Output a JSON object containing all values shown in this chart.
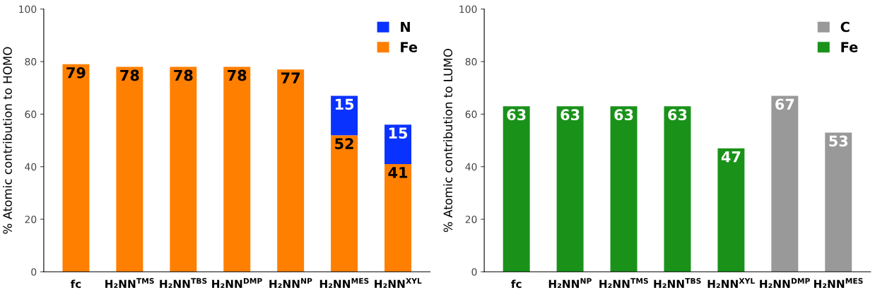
{
  "chart_data": [
    {
      "type": "bar",
      "stacked": true,
      "ylabel": "% Atomic contribution to HOMO",
      "categories": [
        "fc",
        "H₂NN$^{TMS}$",
        "H₂NN$^{TBS}$",
        "H₂NN$^{DMP}$",
        "H₂NN$^{NP}$",
        "H₂NN$^{MES}$",
        "H₂NN$^{XYL}$"
      ],
      "ylim": [
        0,
        100
      ],
      "yticks": [
        0,
        20,
        40,
        60,
        80,
        100
      ],
      "grid": false,
      "legend": "top right",
      "data_labels": true,
      "series": [
        {
          "name": "Fe",
          "color": "#ff7f00",
          "values": [
            79,
            78,
            78,
            78,
            77,
            52,
            41
          ]
        },
        {
          "name": "N",
          "color": "#0a32ff",
          "values": [
            null,
            null,
            null,
            null,
            null,
            15,
            15
          ]
        }
      ]
    },
    {
      "type": "bar",
      "stacked": true,
      "ylabel": "% Atomic contribution to LUMO",
      "categories": [
        "fc",
        "H₂NN$^{NP}$",
        "H₂NN$^{TMS}$",
        "H₂NN$^{TBS}$",
        "H₂NN$^{XYL}$",
        "H₂NN$^{DMP}$",
        "H₂NN$^{MES}$"
      ],
      "ylim": [
        0,
        100
      ],
      "yticks": [
        0,
        20,
        40,
        60,
        80,
        100
      ],
      "grid": false,
      "legend": "top right",
      "data_labels": true,
      "series": [
        {
          "name": "Fe",
          "color": "#1a921a",
          "values": [
            63,
            63,
            63,
            63,
            47,
            null,
            null
          ]
        },
        {
          "name": "C",
          "color": "#999999",
          "values": [
            null,
            null,
            null,
            null,
            null,
            67,
            53
          ]
        }
      ]
    }
  ]
}
